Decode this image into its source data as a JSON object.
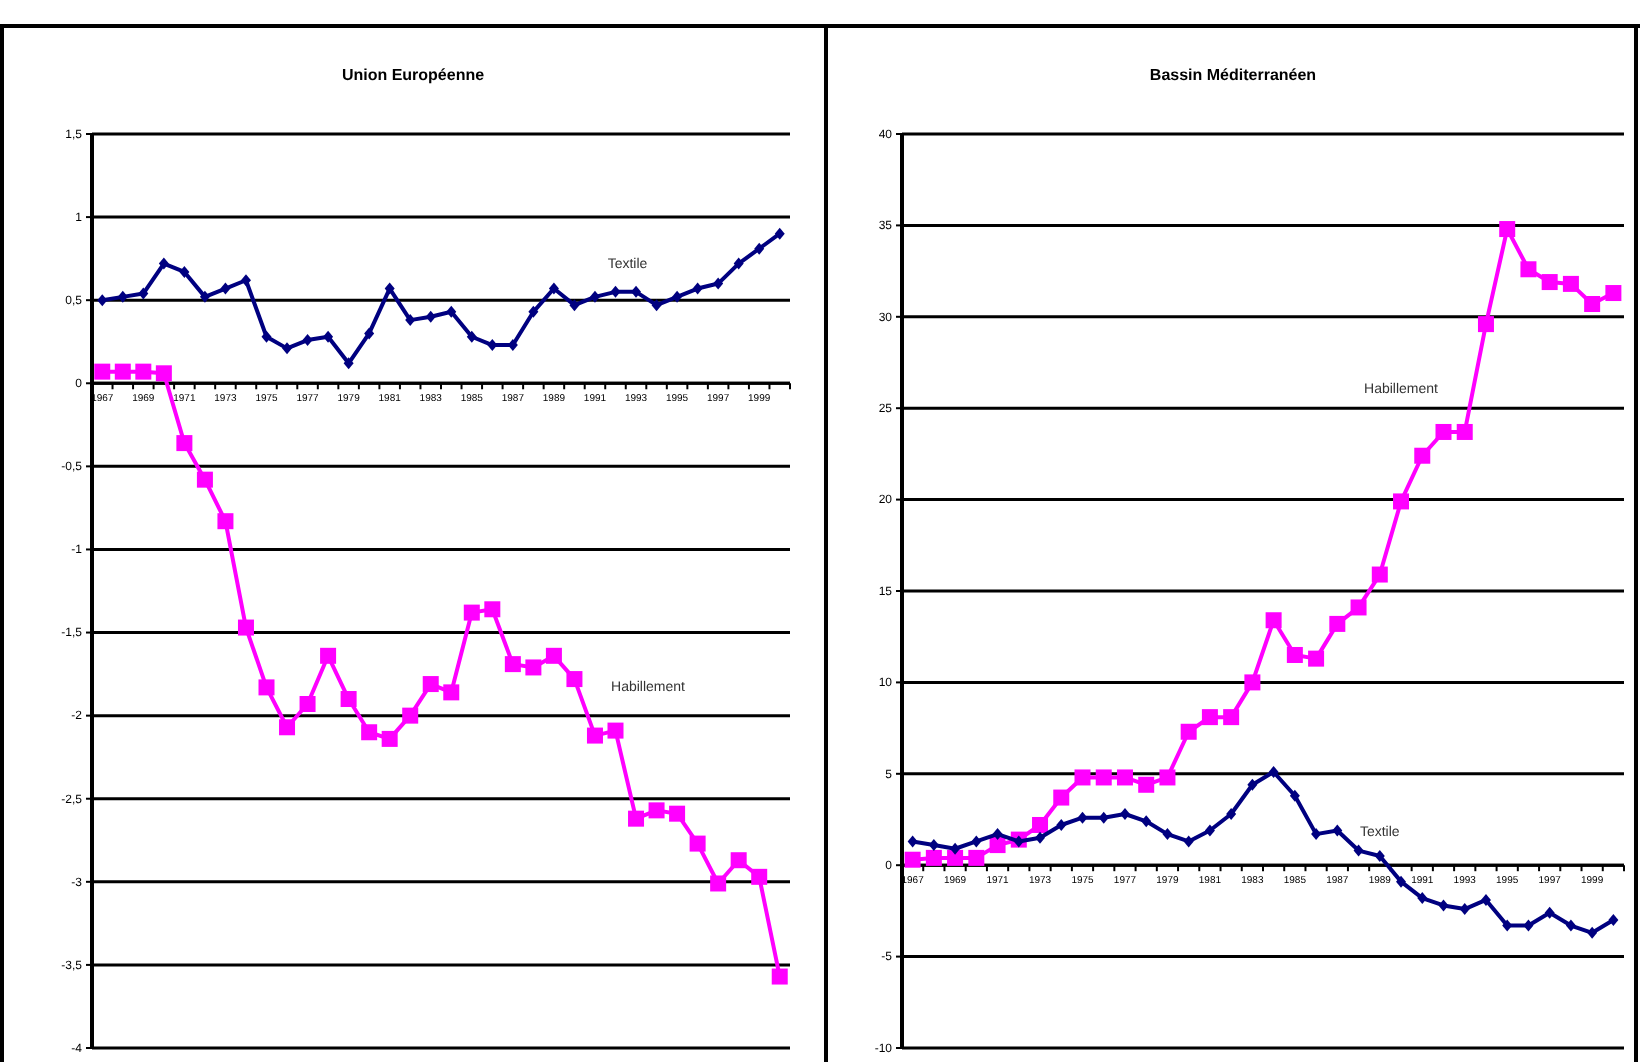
{
  "chart_data": [
    {
      "type": "line",
      "title": "Union Européenne",
      "categories": [
        "1967",
        null,
        "1969",
        null,
        "1971",
        null,
        "1973",
        null,
        "1975",
        null,
        "1977",
        null,
        "1979",
        null,
        "1981",
        null,
        "1983",
        null,
        "1985",
        null,
        "1987",
        null,
        "1989",
        null,
        "1991",
        null,
        "1993",
        null,
        "1995",
        null,
        "1997",
        null,
        "1999",
        null
      ],
      "series": [
        {
          "name": "Textile",
          "color": "#000080",
          "marker": "diamond",
          "values": [
            0.5,
            0.52,
            0.54,
            0.72,
            0.67,
            0.52,
            0.57,
            0.62,
            0.28,
            0.21,
            0.26,
            0.28,
            0.12,
            0.3,
            0.57,
            0.38,
            0.4,
            0.43,
            0.28,
            0.23,
            0.23,
            0.43,
            0.57,
            0.47,
            0.52,
            0.55,
            0.55,
            0.47,
            0.52,
            0.57,
            0.6,
            0.72,
            0.81,
            0.9
          ]
        },
        {
          "name": "Habillement",
          "color": "#ff00ff",
          "marker": "square",
          "values": [
            0.07,
            0.07,
            0.07,
            0.06,
            -0.36,
            -0.58,
            -0.83,
            -1.47,
            -1.83,
            -2.07,
            -1.93,
            -1.64,
            -1.9,
            -2.1,
            -2.14,
            -2.0,
            -1.81,
            -1.86,
            -1.38,
            -1.36,
            -1.69,
            -1.71,
            -1.64,
            -1.78,
            -2.12,
            -2.09,
            -2.62,
            -2.57,
            -2.59,
            -2.77,
            -3.01,
            -2.87,
            -2.97,
            -3.57
          ]
        }
      ],
      "ylim": [
        -4,
        1.5
      ],
      "yticks": [
        {
          "value": 1.5,
          "label": "1,5"
        },
        1,
        {
          "value": 0.5,
          "label": "0,5"
        },
        0,
        {
          "value": -0.5,
          "label": "-0,5"
        },
        -1,
        {
          "value": -1.5,
          "label": "-1,5"
        },
        -2,
        {
          "value": -2.5,
          "label": "-2,5"
        },
        -3,
        {
          "value": -3.5,
          "label": "-3,5"
        },
        -4
      ],
      "grid": "y",
      "legend": false
    },
    {
      "type": "line",
      "title": "Bassin Méditerranéen",
      "categories": [
        "1967",
        null,
        "1969",
        null,
        "1971",
        null,
        "1973",
        null,
        "1975",
        null,
        "1977",
        null,
        "1979",
        null,
        "1981",
        null,
        "1983",
        null,
        "1985",
        null,
        "1987",
        null,
        "1989",
        null,
        "1991",
        null,
        "1993",
        null,
        "1995",
        null,
        "1997",
        null,
        "1999",
        null
      ],
      "series": [
        {
          "name": "Habillement",
          "color": "#ff00ff",
          "marker": "square",
          "values": [
            0.3,
            0.4,
            0.4,
            0.4,
            1.1,
            1.4,
            2.2,
            3.7,
            4.8,
            4.8,
            4.8,
            4.4,
            4.8,
            7.3,
            8.1,
            8.1,
            10.0,
            13.4,
            11.5,
            11.3,
            13.2,
            14.1,
            15.9,
            19.9,
            22.4,
            23.7,
            23.7,
            29.6,
            34.8,
            32.6,
            31.9,
            31.8,
            30.7,
            31.3
          ]
        },
        {
          "name": "Textile",
          "color": "#000080",
          "marker": "diamond",
          "values": [
            1.3,
            1.1,
            0.9,
            1.3,
            1.7,
            1.3,
            1.5,
            2.2,
            2.6,
            2.6,
            2.8,
            2.4,
            1.7,
            1.3,
            1.9,
            2.8,
            4.4,
            5.1,
            3.8,
            1.7,
            1.9,
            0.8,
            0.5,
            -0.9,
            -1.8,
            -2.2,
            -2.4,
            -1.9,
            -3.3,
            -3.3,
            -2.6,
            -3.3,
            -3.7,
            -3.0
          ]
        }
      ],
      "ylim": [
        -10,
        40
      ],
      "yticks": [
        -10,
        -5,
        0,
        5,
        10,
        15,
        20,
        25,
        30,
        35,
        40
      ],
      "grid": "y",
      "legend": false
    }
  ]
}
